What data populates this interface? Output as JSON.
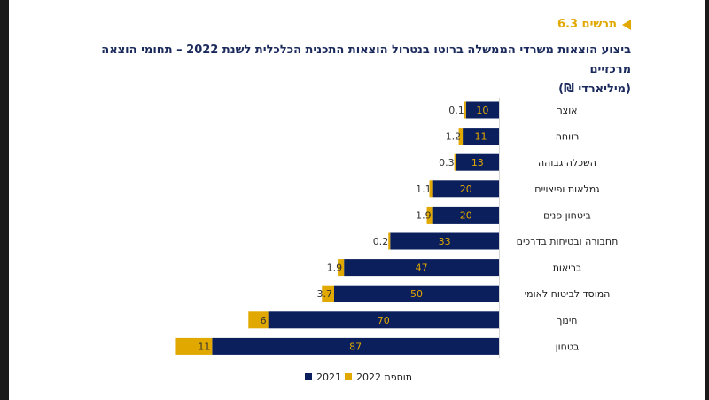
{
  "figure_label": "תרשים 6.3",
  "title_line1": "ביצוע הוצאות משרדי הממשלה ברוטו בנטרול הוצאות התכנית הכלכלית לשנת 2022 – תחומי הוצאה מרכזיים",
  "title_line2": "(מיליארדי ₪)",
  "colors": {
    "base": "#0a1f5c",
    "addition": "#e1a800",
    "base_label": "#e1a800",
    "add_label": "#333333"
  },
  "chart_data": {
    "type": "bar",
    "orientation": "horizontal-stacked",
    "categories": [
      "אוצר",
      "רווחה",
      "השכלה גבוהה",
      "גמלאות ופיצויים",
      "ביטחון פנים",
      "תחבורה ובטיחות בדרכים",
      "בריאות",
      "המוסד לביטוח לאומי",
      "חינוך",
      "בטחון"
    ],
    "series": [
      {
        "name": "2021",
        "values": [
          10,
          11,
          13,
          20,
          20,
          33,
          47,
          50,
          70,
          87
        ]
      },
      {
        "name": "תוספת 2022",
        "values": [
          0.1,
          1.2,
          0.3,
          1.1,
          1.9,
          0.2,
          1.9,
          3.7,
          6,
          11
        ]
      }
    ],
    "value_labels": {
      "2021": [
        "10",
        "11",
        "13",
        "20",
        "20",
        "33",
        "47",
        "50",
        "70",
        "87"
      ],
      "תוספת 2022": [
        "0.1",
        "1.2",
        "0.3",
        "1.1",
        "1.9",
        "0.2",
        "1.9",
        "3.7",
        "6",
        "11"
      ]
    },
    "xlim": [
      0,
      100
    ],
    "legend_position": "bottom"
  }
}
